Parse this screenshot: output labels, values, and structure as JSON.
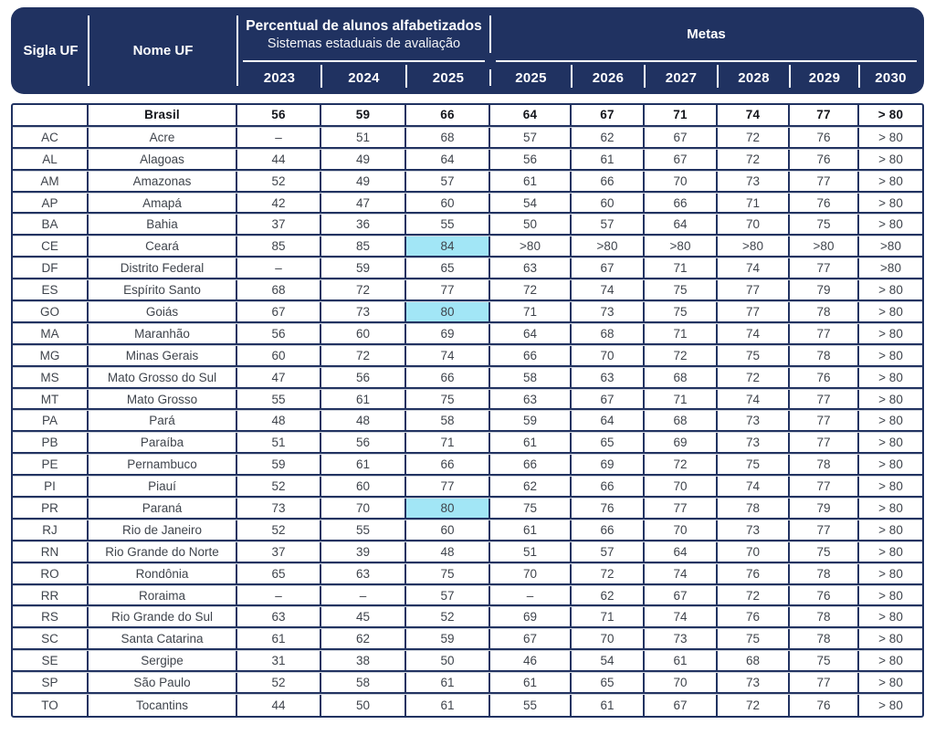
{
  "chart_data": {
    "type": "table",
    "header": {
      "sigla_label": "Sigla UF",
      "nome_label": "Nome UF",
      "group1_title": "Percentual de alunos alfabetizados",
      "group1_subtitle": "Sistemas estaduais de avaliação",
      "group1_years": [
        "2023",
        "2024",
        "2025"
      ],
      "group2_title": "Metas",
      "group2_years": [
        "2025",
        "2026",
        "2027",
        "2028",
        "2029",
        "2030"
      ]
    },
    "rows": [
      {
        "sigla": "",
        "nome": "Brasil",
        "bold": true,
        "highlight2025": false,
        "values": [
          "56",
          "59",
          "66",
          "64",
          "67",
          "71",
          "74",
          "77",
          "> 80"
        ]
      },
      {
        "sigla": "AC",
        "nome": "Acre",
        "bold": false,
        "highlight2025": false,
        "values": [
          "–",
          "51",
          "68",
          "57",
          "62",
          "67",
          "72",
          "76",
          "> 80"
        ]
      },
      {
        "sigla": "AL",
        "nome": "Alagoas",
        "bold": false,
        "highlight2025": false,
        "values": [
          "44",
          "49",
          "64",
          "56",
          "61",
          "67",
          "72",
          "76",
          "> 80"
        ]
      },
      {
        "sigla": "AM",
        "nome": "Amazonas",
        "bold": false,
        "highlight2025": false,
        "values": [
          "52",
          "49",
          "57",
          "61",
          "66",
          "70",
          "73",
          "77",
          "> 80"
        ]
      },
      {
        "sigla": "AP",
        "nome": "Amapá",
        "bold": false,
        "highlight2025": false,
        "values": [
          "42",
          "47",
          "60",
          "54",
          "60",
          "66",
          "71",
          "76",
          "> 80"
        ]
      },
      {
        "sigla": "BA",
        "nome": "Bahia",
        "bold": false,
        "highlight2025": false,
        "values": [
          "37",
          "36",
          "55",
          "50",
          "57",
          "64",
          "70",
          "75",
          "> 80"
        ]
      },
      {
        "sigla": "CE",
        "nome": "Ceará",
        "bold": false,
        "highlight2025": true,
        "values": [
          "85",
          "85",
          "84",
          ">80",
          ">80",
          ">80",
          ">80",
          ">80",
          ">80"
        ]
      },
      {
        "sigla": "DF",
        "nome": "Distrito Federal",
        "bold": false,
        "highlight2025": false,
        "values": [
          "–",
          "59",
          "65",
          "63",
          "67",
          "71",
          "74",
          "77",
          ">80"
        ]
      },
      {
        "sigla": "ES",
        "nome": "Espírito Santo",
        "bold": false,
        "highlight2025": false,
        "values": [
          "68",
          "72",
          "77",
          "72",
          "74",
          "75",
          "77",
          "79",
          "> 80"
        ]
      },
      {
        "sigla": "GO",
        "nome": "Goiás",
        "bold": false,
        "highlight2025": true,
        "values": [
          "67",
          "73",
          "80",
          "71",
          "73",
          "75",
          "77",
          "78",
          "> 80"
        ]
      },
      {
        "sigla": "MA",
        "nome": "Maranhão",
        "bold": false,
        "highlight2025": false,
        "values": [
          "56",
          "60",
          "69",
          "64",
          "68",
          "71",
          "74",
          "77",
          "> 80"
        ]
      },
      {
        "sigla": "MG",
        "nome": "Minas Gerais",
        "bold": false,
        "highlight2025": false,
        "values": [
          "60",
          "72",
          "74",
          "66",
          "70",
          "72",
          "75",
          "78",
          "> 80"
        ]
      },
      {
        "sigla": "MS",
        "nome": "Mato Grosso do Sul",
        "bold": false,
        "highlight2025": false,
        "values": [
          "47",
          "56",
          "66",
          "58",
          "63",
          "68",
          "72",
          "76",
          "> 80"
        ]
      },
      {
        "sigla": "MT",
        "nome": "Mato Grosso",
        "bold": false,
        "highlight2025": false,
        "values": [
          "55",
          "61",
          "75",
          "63",
          "67",
          "71",
          "74",
          "77",
          "> 80"
        ]
      },
      {
        "sigla": "PA",
        "nome": "Pará",
        "bold": false,
        "highlight2025": false,
        "values": [
          "48",
          "48",
          "58",
          "59",
          "64",
          "68",
          "73",
          "77",
          "> 80"
        ]
      },
      {
        "sigla": "PB",
        "nome": "Paraíba",
        "bold": false,
        "highlight2025": false,
        "values": [
          "51",
          "56",
          "71",
          "61",
          "65",
          "69",
          "73",
          "77",
          "> 80"
        ]
      },
      {
        "sigla": "PE",
        "nome": "Pernambuco",
        "bold": false,
        "highlight2025": false,
        "values": [
          "59",
          "61",
          "66",
          "66",
          "69",
          "72",
          "75",
          "78",
          "> 80"
        ]
      },
      {
        "sigla": "PI",
        "nome": "Piauí",
        "bold": false,
        "highlight2025": false,
        "values": [
          "52",
          "60",
          "77",
          "62",
          "66",
          "70",
          "74",
          "77",
          "> 80"
        ]
      },
      {
        "sigla": "PR",
        "nome": "Paraná",
        "bold": false,
        "highlight2025": true,
        "values": [
          "73",
          "70",
          "80",
          "75",
          "76",
          "77",
          "78",
          "79",
          "> 80"
        ]
      },
      {
        "sigla": "RJ",
        "nome": "Rio de Janeiro",
        "bold": false,
        "highlight2025": false,
        "values": [
          "52",
          "55",
          "60",
          "61",
          "66",
          "70",
          "73",
          "77",
          "> 80"
        ]
      },
      {
        "sigla": "RN",
        "nome": "Rio Grande do Norte",
        "bold": false,
        "highlight2025": false,
        "values": [
          "37",
          "39",
          "48",
          "51",
          "57",
          "64",
          "70",
          "75",
          "> 80"
        ]
      },
      {
        "sigla": "RO",
        "nome": "Rondônia",
        "bold": false,
        "highlight2025": false,
        "values": [
          "65",
          "63",
          "75",
          "70",
          "72",
          "74",
          "76",
          "78",
          "> 80"
        ]
      },
      {
        "sigla": "RR",
        "nome": "Roraima",
        "bold": false,
        "highlight2025": false,
        "values": [
          "–",
          "–",
          "57",
          "–",
          "62",
          "67",
          "72",
          "76",
          "> 80"
        ]
      },
      {
        "sigla": "RS",
        "nome": "Rio Grande do Sul",
        "bold": false,
        "highlight2025": false,
        "values": [
          "63",
          "45",
          "52",
          "69",
          "71",
          "74",
          "76",
          "78",
          "> 80"
        ]
      },
      {
        "sigla": "SC",
        "nome": "Santa Catarina",
        "bold": false,
        "highlight2025": false,
        "values": [
          "61",
          "62",
          "59",
          "67",
          "70",
          "73",
          "75",
          "78",
          "> 80"
        ]
      },
      {
        "sigla": "SE",
        "nome": "Sergipe",
        "bold": false,
        "highlight2025": false,
        "values": [
          "31",
          "38",
          "50",
          "46",
          "54",
          "61",
          "68",
          "75",
          "> 80"
        ]
      },
      {
        "sigla": "SP",
        "nome": "São Paulo",
        "bold": false,
        "highlight2025": false,
        "values": [
          "52",
          "58",
          "61",
          "61",
          "65",
          "70",
          "73",
          "77",
          "> 80"
        ]
      },
      {
        "sigla": "TO",
        "nome": "Tocantins",
        "bold": false,
        "highlight2025": false,
        "values": [
          "44",
          "50",
          "61",
          "55",
          "61",
          "67",
          "72",
          "76",
          "> 80"
        ]
      }
    ]
  },
  "colors": {
    "navy": "#203261",
    "highlight_cyan": "#a2e6f6",
    "row_line_gray": "#ccd1da",
    "body_text": "#3f444c"
  }
}
